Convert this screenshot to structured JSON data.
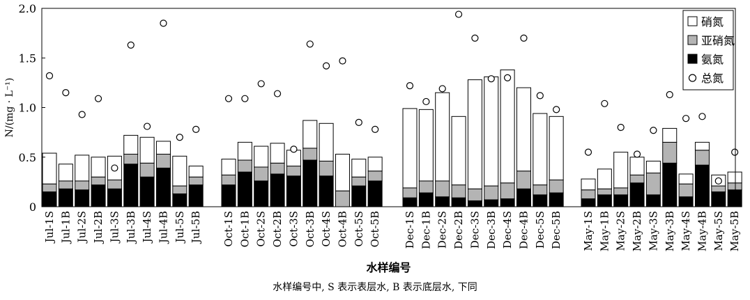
{
  "chart_data": {
    "type": "bar",
    "stacked": true,
    "ylabel": "N/(mg · L⁻¹)",
    "xlabel": "水样编号",
    "ylim": [
      0,
      2.0
    ],
    "yticks": [
      "0",
      "0.5",
      "1.0",
      "1.5",
      "2.0"
    ],
    "grid": false,
    "legend_position": "top-right",
    "groups": [
      [
        "Jul-1S",
        "Jul-1B",
        "Jul-2S",
        "Jul-2B",
        "Jul-3S",
        "Jul-3B",
        "Jul-4S",
        "Jul-4B",
        "Jul-5S",
        "Jul-5B"
      ],
      [
        "Oct-1S",
        "Oct-1B",
        "Oct-2S",
        "Oct-2B",
        "Oct-3S",
        "Oct-3B",
        "Oct-4S",
        "Oct-4B",
        "Oct-5S",
        "Oct-5B"
      ],
      [
        "Dec-1S",
        "Dec-1B",
        "Dec-2S",
        "Dec-2B",
        "Dec-3S",
        "Dec-3B",
        "Dec-4S",
        "Dec-4B",
        "Dec-5S",
        "Dec-5B"
      ],
      [
        "May-1S",
        "May-1B",
        "May-2S",
        "May-2B",
        "May-3S",
        "May-3B",
        "May-4S",
        "May-4B",
        "May-5S",
        "May-5B"
      ]
    ],
    "series": [
      {
        "name": "硝氮",
        "color": "#ffffff",
        "values": [
          0.31,
          0.17,
          0.26,
          0.2,
          0.24,
          0.19,
          0.26,
          0.13,
          0.3,
          0.11,
          0.16,
          0.18,
          0.21,
          0.2,
          0.16,
          0.28,
          0.38,
          0.37,
          0.18,
          0.14,
          0.8,
          0.72,
          0.89,
          0.69,
          1.1,
          1.1,
          1.14,
          0.84,
          0.72,
          0.64,
          0.11,
          0.2,
          0.36,
          0.18,
          0.12,
          0.14,
          0.1,
          0.08,
          0.11,
          0.11
        ]
      },
      {
        "name": "亚硝氮",
        "color": "#b4b4b4",
        "values": [
          0.08,
          0.08,
          0.09,
          0.08,
          0.09,
          0.1,
          0.14,
          0.14,
          0.08,
          0.08,
          0.1,
          0.12,
          0.14,
          0.11,
          0.1,
          0.12,
          0.15,
          0.16,
          0.09,
          0.1,
          0.1,
          0.12,
          0.16,
          0.13,
          0.12,
          0.14,
          0.16,
          0.18,
          0.1,
          0.13,
          0.09,
          0.06,
          0.07,
          0.08,
          0.22,
          0.21,
          0.13,
          0.15,
          0.06,
          0.07
        ]
      },
      {
        "name": "氨氮",
        "color": "#000000",
        "values": [
          0.15,
          0.18,
          0.17,
          0.22,
          0.18,
          0.43,
          0.3,
          0.39,
          0.13,
          0.22,
          0.22,
          0.35,
          0.26,
          0.33,
          0.31,
          0.47,
          0.31,
          0.0,
          0.21,
          0.26,
          0.09,
          0.14,
          0.1,
          0.09,
          0.06,
          0.07,
          0.08,
          0.18,
          0.12,
          0.14,
          0.08,
          0.12,
          0.12,
          0.24,
          0.12,
          0.44,
          0.1,
          0.42,
          0.15,
          0.17
        ]
      }
    ],
    "total_nitrogen": {
      "name": "总氮",
      "values": [
        1.32,
        1.15,
        0.93,
        1.09,
        0.39,
        1.63,
        0.81,
        1.85,
        0.7,
        0.78,
        1.09,
        1.09,
        1.24,
        1.14,
        0.58,
        1.64,
        1.42,
        1.47,
        0.85,
        0.78,
        1.22,
        1.06,
        1.19,
        1.94,
        1.7,
        1.29,
        1.3,
        1.7,
        1.12,
        0.98,
        0.55,
        1.04,
        0.8,
        0.53,
        0.77,
        1.13,
        0.89,
        0.91,
        0.26,
        0.55
      ]
    },
    "legend": [
      "硝氮",
      "亚硝氮",
      "氨氮",
      "总氮"
    ],
    "caption": "水样编号中, S 表示表层水, B 表示底层水, 下同"
  }
}
